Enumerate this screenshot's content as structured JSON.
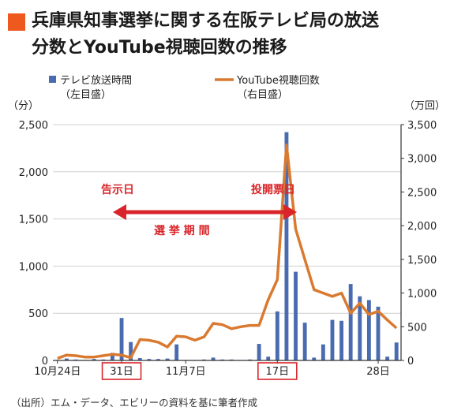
{
  "title_lines": [
    "兵庫県知事選挙に関する在阪テレビ局の放送",
    "分数とYouTube視聴回数の推移"
  ],
  "legend": {
    "bar_label": "テレビ放送時間",
    "bar_sub": "（左目盛）",
    "line_label": "YouTube視聴回数",
    "line_sub": "（右目盛）"
  },
  "colors": {
    "bar": "#4a6bb0",
    "line": "#d97a30",
    "annotation": "#d9252a",
    "accent": "#ee5a1e"
  },
  "annotations": {
    "kokuji": "告示日",
    "touhyou": "投開票日",
    "period": "選 挙 期 間"
  },
  "source": "（出所）エム・データ、エビリーの資料を基に筆者作成",
  "chart_data": {
    "type": "bar+line",
    "left_unit": "（分）",
    "right_unit": "（万回）",
    "ylim_left": [
      0,
      2500
    ],
    "ylim_right": [
      0,
      3500
    ],
    "left_ticks": [
      "0",
      "500",
      "1,000",
      "1,500",
      "2,000",
      "2,500"
    ],
    "right_ticks": [
      "0",
      "500",
      "1,000",
      "1,500",
      "2,000",
      "2,500",
      "3,000",
      "3,500"
    ],
    "x_labels": [
      {
        "text": "10月24日",
        "day_index": 0,
        "boxed": false
      },
      {
        "text": "31日",
        "day_index": 7,
        "boxed": true
      },
      {
        "text": "11月7日",
        "day_index": 14,
        "boxed": false
      },
      {
        "text": "17日",
        "day_index": 24,
        "boxed": true
      },
      {
        "text": "28日",
        "day_index": 35,
        "boxed": false
      }
    ],
    "dates": [
      "10/24",
      "10/25",
      "10/26",
      "10/27",
      "10/28",
      "10/29",
      "10/30",
      "10/31",
      "11/1",
      "11/2",
      "11/3",
      "11/4",
      "11/5",
      "11/6",
      "11/7",
      "11/8",
      "11/9",
      "11/10",
      "11/11",
      "11/12",
      "11/13",
      "11/14",
      "11/15",
      "11/16",
      "11/17",
      "11/18",
      "11/19",
      "11/20",
      "11/21",
      "11/22",
      "11/23",
      "11/24",
      "11/25",
      "11/26",
      "11/27",
      "11/28",
      "11/29",
      "11/30"
    ],
    "series": [
      {
        "name": "テレビ放送時間",
        "kind": "bar",
        "axis": "left",
        "values": [
          5,
          20,
          10,
          5,
          15,
          10,
          80,
          450,
          195,
          25,
          15,
          15,
          20,
          170,
          5,
          5,
          10,
          30,
          10,
          10,
          5,
          10,
          175,
          40,
          520,
          2420,
          940,
          400,
          30,
          170,
          430,
          420,
          810,
          680,
          640,
          570,
          40,
          190
        ]
      },
      {
        "name": "YouTube視聴回数",
        "kind": "line",
        "axis": "right",
        "values": [
          30,
          80,
          70,
          50,
          50,
          70,
          90,
          80,
          40,
          310,
          300,
          270,
          200,
          360,
          350,
          300,
          350,
          550,
          530,
          470,
          500,
          520,
          520,
          900,
          1200,
          3200,
          1950,
          1500,
          1050,
          1000,
          950,
          1000,
          700,
          850,
          680,
          730,
          600,
          480
        ]
      }
    ],
    "election_period": {
      "start_day_index": 7,
      "end_day_index": 24
    }
  }
}
